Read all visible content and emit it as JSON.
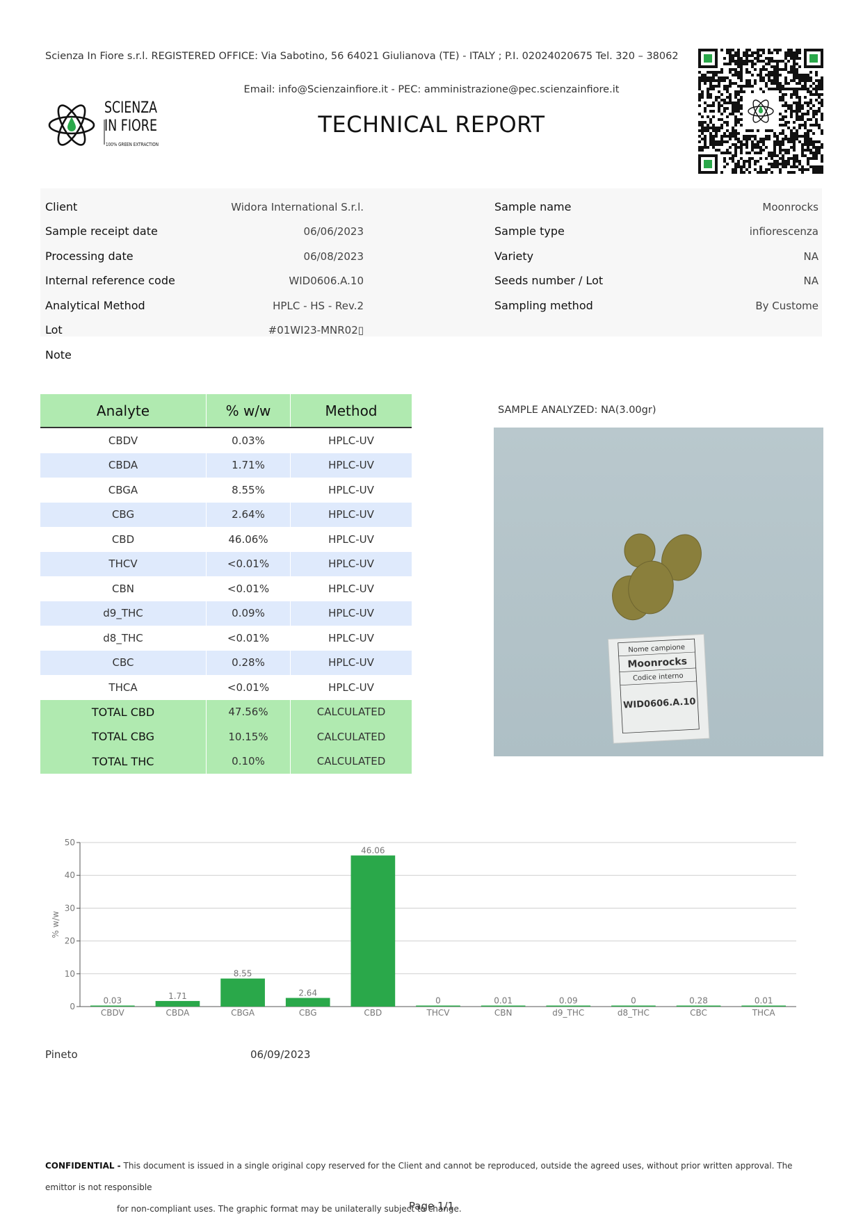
{
  "header": {
    "registered_office": "Scienza In Fiore s.r.l. REGISTERED OFFICE: Via Sabotino, 56 64021 Giulianova (TE) - ITALY ; P.I. 02024020675 Tel. 320 – 38062",
    "email_line": "Email: info@Scienzainfiore.it - PEC: amministrazione@pec.scienzainfiore.it",
    "title": "TECHNICAL REPORT",
    "logo": {
      "line1": "SCIENZA",
      "line2": "IN FIORE",
      "tagline": "100% GREEN EXTRACTION"
    }
  },
  "info_left": [
    {
      "label": "Client",
      "value": "Widora International S.r.l."
    },
    {
      "label": "Sample receipt date",
      "value": "06/06/2023"
    },
    {
      "label": "Processing date",
      "value": "06/08/2023"
    },
    {
      "label": "Internal reference code",
      "value": "WID0606.A.10"
    },
    {
      "label": "Analytical Method",
      "value": "HPLC - HS - Rev.2"
    },
    {
      "label": "Lot",
      "value": "#01WI23-MNR02▯"
    }
  ],
  "info_right": [
    {
      "label": "Sample name",
      "value": "Moonrocks"
    },
    {
      "label": "Sample type",
      "value": "infiorescenza"
    },
    {
      "label": "Variety",
      "value": "NA"
    },
    {
      "label": "Seeds number / Lot",
      "value": "NA"
    },
    {
      "label": "Sampling method",
      "value": "By Custome"
    }
  ],
  "note_label": "Note",
  "table": {
    "headers": [
      "Analyte",
      "% w/w",
      "Method"
    ],
    "rows": [
      {
        "analyte": "CBDV",
        "value": "0.03%",
        "method": "HPLC-UV"
      },
      {
        "analyte": "CBDA",
        "value": "1.71%",
        "method": "HPLC-UV"
      },
      {
        "analyte": "CBGA",
        "value": "8.55%",
        "method": "HPLC-UV"
      },
      {
        "analyte": "CBG",
        "value": "2.64%",
        "method": "HPLC-UV"
      },
      {
        "analyte": "CBD",
        "value": "46.06%",
        "method": "HPLC-UV"
      },
      {
        "analyte": "THCV",
        "value": "<0.01%",
        "method": "HPLC-UV"
      },
      {
        "analyte": "CBN",
        "value": "<0.01%",
        "method": "HPLC-UV"
      },
      {
        "analyte": "d9_THC",
        "value": "0.09%",
        "method": "HPLC-UV"
      },
      {
        "analyte": "d8_THC",
        "value": "<0.01%",
        "method": "HPLC-UV"
      },
      {
        "analyte": "CBC",
        "value": "0.28%",
        "method": "HPLC-UV"
      },
      {
        "analyte": "THCA",
        "value": "<0.01%",
        "method": "HPLC-UV"
      }
    ],
    "totals": [
      {
        "analyte": "TOTAL CBD",
        "value": "47.56%",
        "method": "CALCULATED"
      },
      {
        "analyte": "TOTAL CBG",
        "value": "10.15%",
        "method": "CALCULATED"
      },
      {
        "analyte": "TOTAL THC",
        "value": "0.10%",
        "method": "CALCULATED"
      }
    ]
  },
  "sample_caption": "SAMPLE ANALYZED: NA(3.00gr)",
  "photo_label": {
    "line1": "Nome campione",
    "line2": "Moonrocks",
    "line3": "Codice interno",
    "line4": "WID0606.A.10"
  },
  "chart_data": {
    "type": "bar",
    "categories": [
      "CBDV",
      "CBDA",
      "CBGA",
      "CBG",
      "CBD",
      "THCV",
      "CBN",
      "d9_THC",
      "d8_THC",
      "CBC",
      "THCA"
    ],
    "values": [
      0.03,
      1.71,
      8.55,
      2.64,
      46.06,
      0,
      0.01,
      0.09,
      0,
      0.28,
      0.01
    ],
    "data_labels": [
      "0.03",
      "1.71",
      "8.55",
      "2.64",
      "46.06",
      "0",
      "0.01",
      "0.09",
      "0",
      "0.28",
      "0.01"
    ],
    "ylabel": "% w/w",
    "xlabel": "",
    "ylim": [
      0,
      50
    ],
    "yticks": [
      0,
      10,
      20,
      30,
      40,
      50
    ],
    "bar_color": "#2aa84a",
    "grid": true
  },
  "footer": {
    "place": "Pineto",
    "date": "06/09/2023",
    "confidential_label": "CONFIDENTIAL -",
    "confidential_line1": "This document is issued in a single original copy reserved for the Client and cannot be reproduced, outside the agreed uses, without prior written approval. The emittor is not responsible",
    "confidential_line2": "for non-compliant uses. The graphic format may be unilaterally subject to change.",
    "page": "Page 1/1"
  },
  "colors": {
    "accent_green": "#b0eab0",
    "alt_row": "#dfeafc",
    "bar": "#2aa84a"
  }
}
